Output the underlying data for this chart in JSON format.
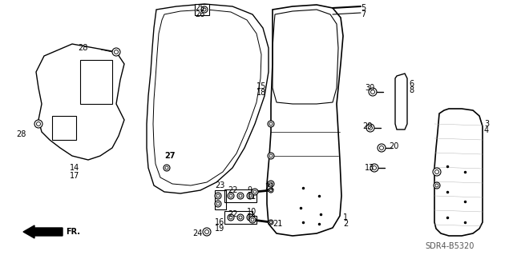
{
  "bg_color": "#ffffff",
  "diagram_code": "SDR4-B5320",
  "figsize": [
    6.4,
    3.19
  ],
  "dpi": 100
}
